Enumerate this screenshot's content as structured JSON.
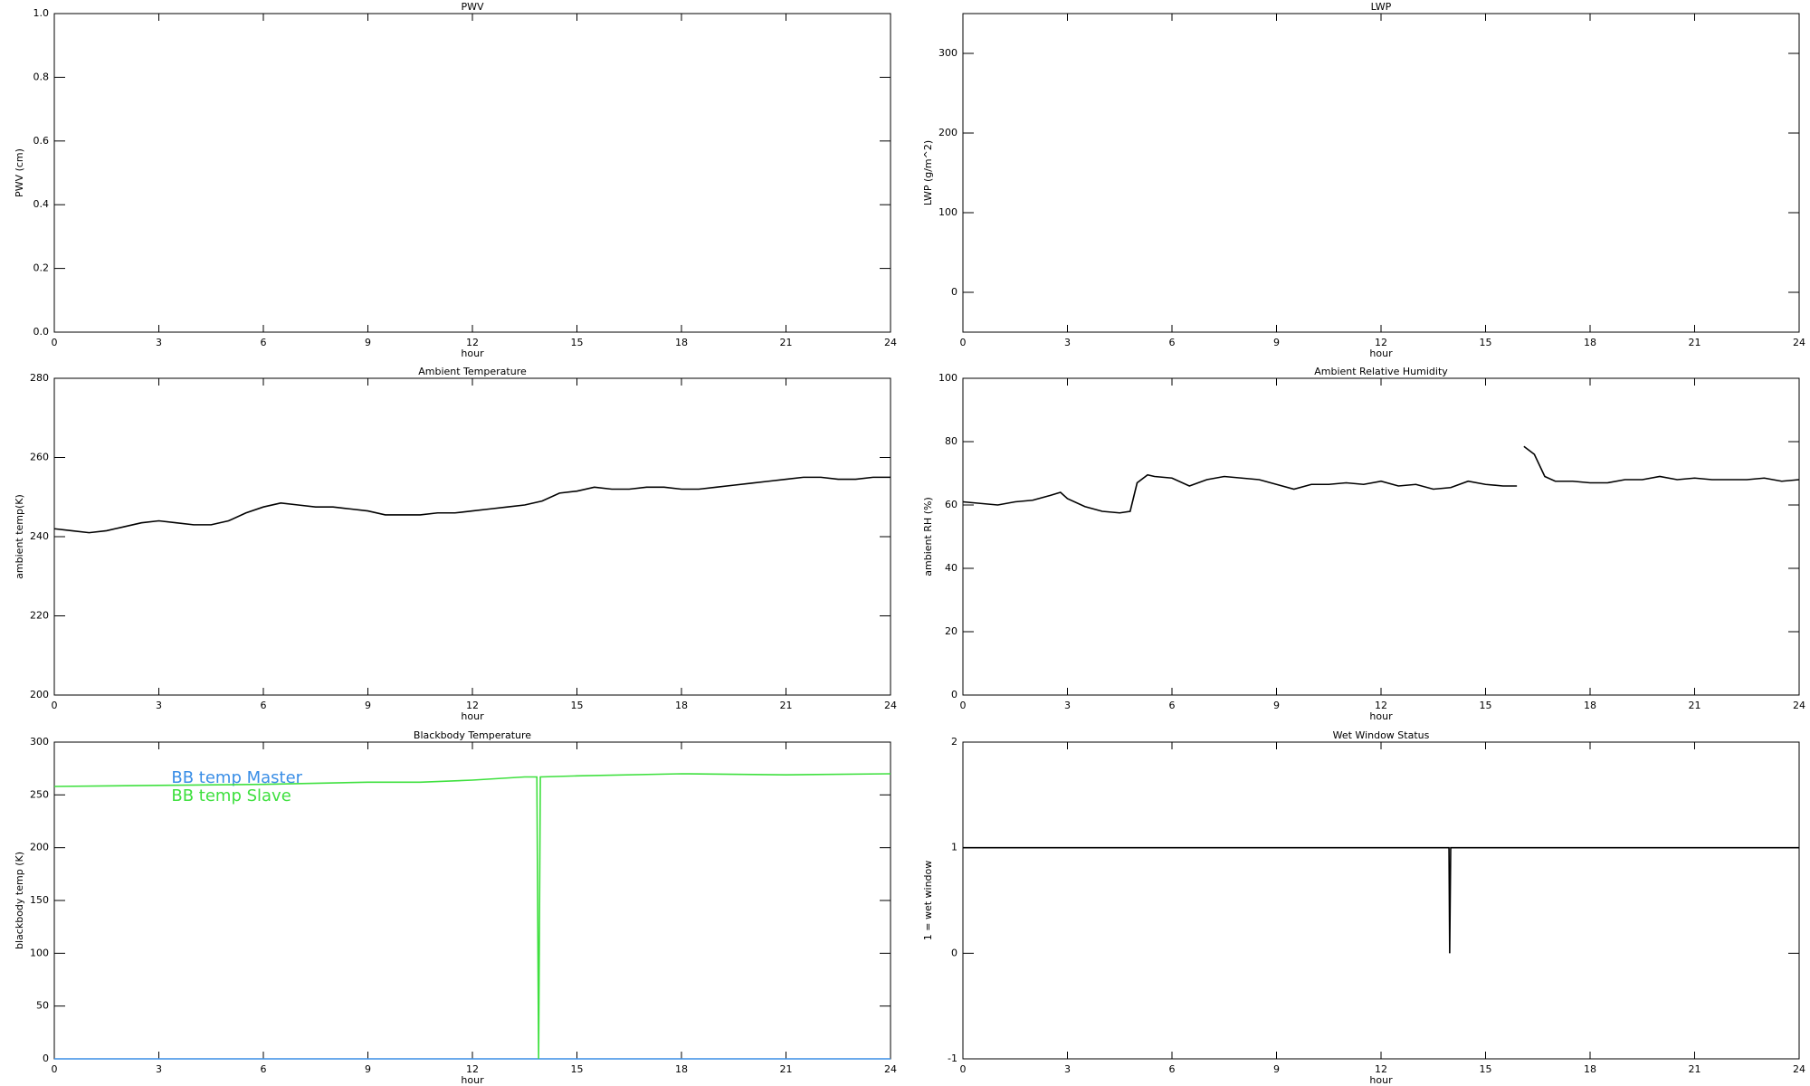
{
  "chart_data": [
    {
      "type": "line",
      "title": "PWV",
      "xlabel": "hour",
      "ylabel": "PWV (cm)",
      "xlim": [
        0,
        24
      ],
      "xticks": [
        0,
        3,
        6,
        9,
        12,
        15,
        18,
        21,
        24
      ],
      "ylim": [
        0,
        1
      ],
      "yticks": [
        {
          "value": 0,
          "label": "0.0"
        },
        0.2,
        0.4,
        0.6,
        0.8,
        {
          "value": 1,
          "label": "1.0"
        }
      ],
      "x": [],
      "series": []
    },
    {
      "type": "line",
      "title": "LWP",
      "xlabel": "hour",
      "ylabel": "LWP (g/m^2)",
      "xlim": [
        0,
        24
      ],
      "xticks": [
        0,
        3,
        6,
        9,
        12,
        15,
        18,
        21,
        24
      ],
      "ylim": [
        -50,
        350
      ],
      "yticks": [
        0,
        100,
        200,
        300
      ],
      "x": [],
      "series": []
    },
    {
      "type": "line",
      "title": "Ambient Temperature",
      "xlabel": "hour",
      "ylabel": "ambient temp(K)",
      "xlim": [
        0,
        24
      ],
      "xticks": [
        0,
        3,
        6,
        9,
        12,
        15,
        18,
        21,
        24
      ],
      "ylim": [
        200,
        280
      ],
      "yticks": [
        200,
        220,
        240,
        260,
        280
      ],
      "x": [
        0,
        0.5,
        1,
        1.5,
        2,
        2.5,
        3,
        3.5,
        4,
        4.5,
        5,
        5.5,
        6,
        6.5,
        7,
        7.5,
        8,
        8.5,
        9,
        9.5,
        10,
        10.5,
        11,
        11.5,
        12,
        12.5,
        13,
        13.5,
        14,
        14.5,
        15,
        15.5,
        16,
        16.5,
        17,
        17.5,
        18,
        18.5,
        19,
        19.5,
        20,
        20.5,
        21,
        21.5,
        22,
        22.5,
        23,
        23.5,
        24
      ],
      "series": [
        {
          "color": "#000000",
          "values": [
            242,
            241.5,
            241,
            241.5,
            242.5,
            243.5,
            244,
            243.5,
            243,
            243,
            244,
            246,
            247.5,
            248.5,
            248,
            247.5,
            247.5,
            247,
            246.5,
            245.5,
            245.5,
            245.5,
            246,
            246,
            246.5,
            247,
            247.5,
            248,
            249,
            251,
            251.5,
            252.5,
            252,
            252,
            252.5,
            252.5,
            252,
            252,
            252.5,
            253,
            253.5,
            254,
            254.5,
            255,
            255,
            254.5,
            254.5,
            255,
            255
          ]
        }
      ]
    },
    {
      "type": "line",
      "title": "Ambient Relative Humidity",
      "xlabel": "hour",
      "ylabel": "ambient RH (%)",
      "xlim": [
        0,
        24
      ],
      "xticks": [
        0,
        3,
        6,
        9,
        12,
        15,
        18,
        21,
        24
      ],
      "ylim": [
        0,
        100
      ],
      "yticks": [
        0,
        20,
        40,
        60,
        80,
        100
      ],
      "x": [
        0,
        0.5,
        1,
        1.5,
        2,
        2.5,
        2.8,
        3,
        3.5,
        4,
        4.5,
        4.8,
        5,
        5.3,
        5.5,
        6,
        6.5,
        7,
        7.5,
        8,
        8.5,
        9,
        9.5,
        10,
        10.5,
        11,
        11.5,
        12,
        12.5,
        13,
        13.5,
        14,
        14.5,
        15,
        15.5,
        15.9,
        16,
        16.1,
        16.4,
        16.7,
        17,
        17.5,
        18,
        18.5,
        19,
        19.5,
        20,
        20.5,
        21,
        21.5,
        22,
        22.5,
        23,
        23.5,
        24
      ],
      "series": [
        {
          "color": "#000000",
          "values": [
            61,
            60.5,
            60,
            61,
            61.5,
            63,
            64,
            62,
            59.5,
            58,
            57.5,
            58,
            67,
            69.5,
            69,
            68.5,
            66,
            68,
            69,
            68.5,
            68,
            66.5,
            65,
            66.5,
            66.5,
            67,
            66.5,
            67.5,
            66,
            66.5,
            65,
            65.5,
            67.5,
            66.5,
            66,
            66,
            null,
            78.5,
            76,
            69,
            67.5,
            67.5,
            67,
            67,
            68,
            68,
            69,
            68,
            68.5,
            68,
            68,
            68,
            68.5,
            67.5,
            68
          ]
        }
      ]
    },
    {
      "type": "line",
      "title": "Blackbody Temperature",
      "xlabel": "hour",
      "ylabel": "blackbody temp (K)",
      "xlim": [
        0,
        24
      ],
      "xticks": [
        0,
        3,
        6,
        9,
        12,
        15,
        18,
        21,
        24
      ],
      "ylim": [
        0,
        300
      ],
      "yticks": [
        0,
        50,
        100,
        150,
        200,
        250,
        300
      ],
      "legend": "upper left",
      "x": [
        0,
        3,
        6,
        9,
        10.5,
        12,
        13.5,
        13.85,
        13.9,
        13.95,
        15,
        18,
        21,
        24
      ],
      "series": [
        {
          "name": "BB temp Master",
          "color": "#3a8ee6",
          "values": [
            0,
            0,
            0,
            0,
            0,
            0,
            0,
            0,
            0,
            0,
            0,
            0,
            0,
            0
          ]
        },
        {
          "name": "BB temp Slave",
          "color": "#3ee03e",
          "values": [
            258,
            259,
            260,
            262,
            262,
            264,
            267,
            267,
            0,
            267,
            268,
            270,
            269,
            270
          ]
        }
      ]
    },
    {
      "type": "line",
      "title": "Wet Window Status",
      "xlabel": "hour",
      "ylabel": "1 = wet window",
      "xlim": [
        0,
        24
      ],
      "xticks": [
        0,
        3,
        6,
        9,
        12,
        15,
        18,
        21,
        24
      ],
      "ylim": [
        -1,
        2
      ],
      "yticks": [
        -1,
        0,
        1,
        2
      ],
      "x": [
        0,
        13.95,
        13.97,
        14,
        24
      ],
      "series": [
        {
          "color": "#000000",
          "values": [
            1,
            1,
            0,
            1,
            1
          ]
        }
      ]
    }
  ]
}
